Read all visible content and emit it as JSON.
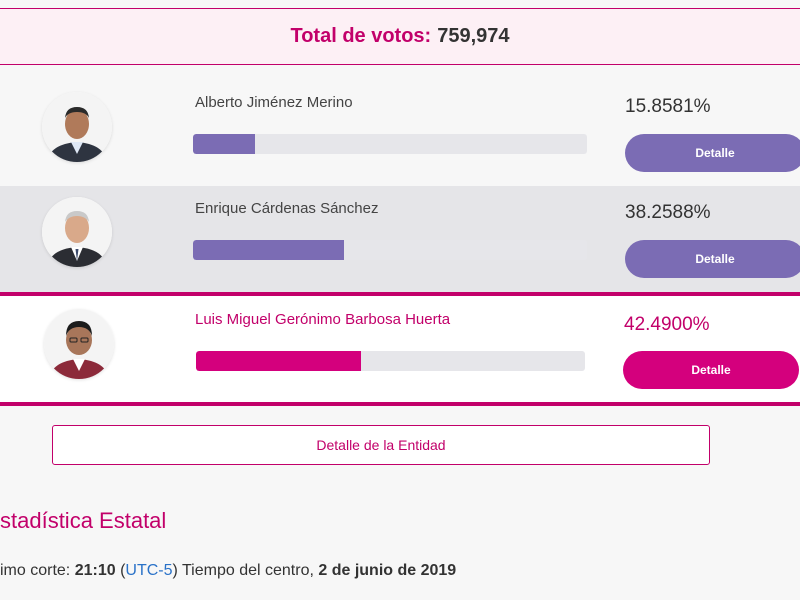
{
  "total": {
    "label": "Total de votos:",
    "value": "759,974"
  },
  "candidates": [
    {
      "name": "Alberto Jiménez Merino",
      "percent_text": "15.8581%",
      "percent": 15.8581,
      "button": "Detalle"
    },
    {
      "name": "Enrique Cárdenas Sánchez",
      "percent_text": "38.2588%",
      "percent": 38.2588,
      "button": "Detalle"
    },
    {
      "name": "Luis Miguel Gerónimo Barbosa Huerta",
      "percent_text": "42.4900%",
      "percent": 42.49,
      "button": "Detalle"
    }
  ],
  "entidad_button": "Detalle de la Entidad",
  "estadistica_title": "stadística Estatal",
  "corte": {
    "prefix": "imo corte:",
    "time": "21:10",
    "open_paren": "(",
    "tz": "UTC-5",
    "close_text": ") Tiempo del centro,",
    "date": "2 de junio de 2019"
  },
  "colors": {
    "accent": "#c2006a",
    "bar": "#7b6cb4",
    "winner": "#d4007d"
  }
}
